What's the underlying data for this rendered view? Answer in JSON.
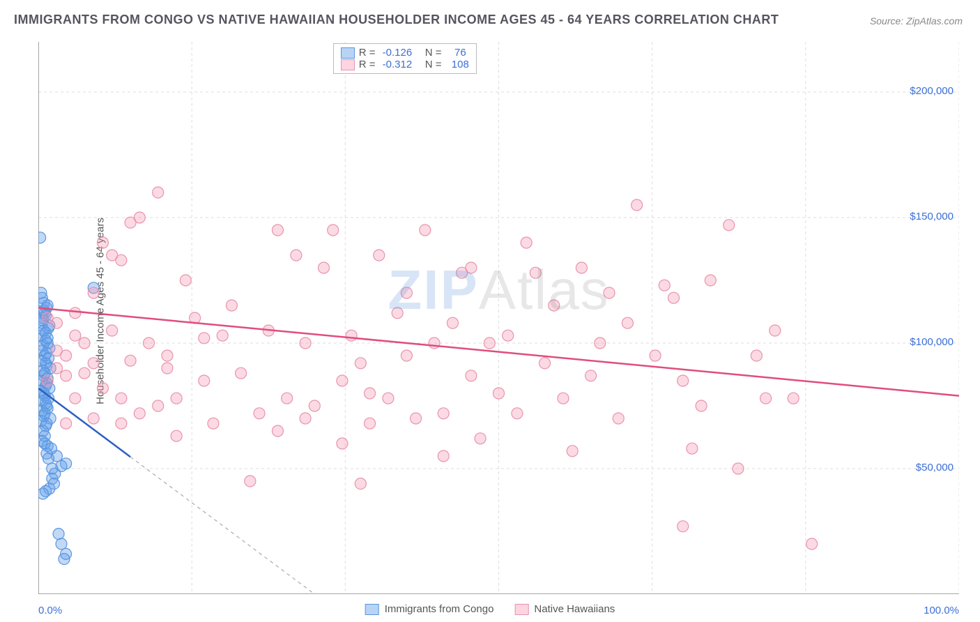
{
  "title": "IMMIGRANTS FROM CONGO VS NATIVE HAWAIIAN HOUSEHOLDER INCOME AGES 45 - 64 YEARS CORRELATION CHART",
  "source": "Source: ZipAtlas.com",
  "ylabel": "Householder Income Ages 45 - 64 years",
  "watermark_z": "ZIP",
  "watermark_rest": "Atlas",
  "chart": {
    "type": "scatter",
    "xlim": [
      0,
      100
    ],
    "ylim": [
      0,
      220000
    ],
    "background_color": "#ffffff",
    "grid_color": "#dddddd",
    "axis_color": "#888888",
    "ygrid_values": [
      50000,
      100000,
      150000,
      200000
    ],
    "xgrid_values": [
      0,
      16.67,
      33.33,
      50,
      66.67,
      83.33,
      100
    ],
    "ytick_labels": [
      "$50,000",
      "$100,000",
      "$150,000",
      "$200,000"
    ],
    "xtick_left": "0.0%",
    "xtick_right": "100.0%"
  },
  "series": [
    {
      "name": "Immigrants from Congo",
      "color_fill": "rgba(100,160,235,0.4)",
      "color_stroke": "#5a96df",
      "swatch_fill": "#b8d4f5",
      "swatch_stroke": "#5a96df",
      "trend_color": "#2d5fc4",
      "R": "-0.126",
      "N": "76",
      "trend": {
        "x1": 0,
        "y1": 82000,
        "x2": 30,
        "y2": 0,
        "solid_until_x": 10
      },
      "points": [
        [
          0.2,
          142000
        ],
        [
          0.3,
          120000
        ],
        [
          0.5,
          110000
        ],
        [
          0.4,
          108000
        ],
        [
          0.6,
          105000
        ],
        [
          0.3,
          103000
        ],
        [
          0.8,
          101000
        ],
        [
          0.5,
          99000
        ],
        [
          0.4,
          97000
        ],
        [
          0.7,
          95000
        ],
        [
          0.3,
          93000
        ],
        [
          0.9,
          91000
        ],
        [
          0.5,
          89000
        ],
        [
          0.6,
          87000
        ],
        [
          0.4,
          85000
        ],
        [
          0.8,
          83000
        ],
        [
          0.3,
          81000
        ],
        [
          0.7,
          79000
        ],
        [
          0.5,
          77000
        ],
        [
          0.9,
          75000
        ],
        [
          0.4,
          73000
        ],
        [
          0.6,
          71000
        ],
        [
          0.3,
          69000
        ],
        [
          0.8,
          67000
        ],
        [
          0.5,
          65000
        ],
        [
          0.7,
          63000
        ],
        [
          0.4,
          61000
        ],
        [
          1.0,
          59000
        ],
        [
          2.0,
          55000
        ],
        [
          3.0,
          52000
        ],
        [
          2.5,
          51000
        ],
        [
          1.5,
          50000
        ],
        [
          1.8,
          48000
        ],
        [
          1.2,
          42000
        ],
        [
          0.8,
          41000
        ],
        [
          0.5,
          40000
        ],
        [
          2.2,
          24000
        ],
        [
          2.5,
          20000
        ],
        [
          3.0,
          16000
        ],
        [
          2.8,
          14000
        ],
        [
          6.0,
          122000
        ],
        [
          1.0,
          100000
        ],
        [
          1.2,
          98000
        ],
        [
          0.9,
          96000
        ],
        [
          1.1,
          94000
        ],
        [
          0.8,
          92000
        ],
        [
          1.3,
          90000
        ],
        [
          0.7,
          88000
        ],
        [
          1.0,
          86000
        ],
        [
          0.9,
          84000
        ],
        [
          1.2,
          82000
        ],
        [
          0.6,
          80000
        ],
        [
          1.1,
          78000
        ],
        [
          0.8,
          76000
        ],
        [
          1.0,
          74000
        ],
        [
          0.7,
          72000
        ],
        [
          1.3,
          70000
        ],
        [
          0.9,
          68000
        ],
        [
          1.1,
          106000
        ],
        [
          0.8,
          104000
        ],
        [
          1.0,
          102000
        ],
        [
          0.6,
          116000
        ],
        [
          0.9,
          114000
        ],
        [
          0.7,
          112000
        ],
        [
          1.2,
          107000
        ],
        [
          0.5,
          109000
        ],
        [
          0.8,
          111000
        ],
        [
          0.6,
          113000
        ],
        [
          1.0,
          115000
        ],
        [
          0.4,
          118000
        ],
        [
          0.7,
          60000
        ],
        [
          1.4,
          58000
        ],
        [
          0.9,
          56000
        ],
        [
          1.1,
          54000
        ],
        [
          1.5,
          46000
        ],
        [
          1.7,
          44000
        ]
      ]
    },
    {
      "name": "Native Hawaiians",
      "color_fill": "rgba(245,150,175,0.35)",
      "color_stroke": "#e893ae",
      "swatch_fill": "#fcd5e0",
      "swatch_stroke": "#e893ae",
      "trend_color": "#e04d7e",
      "R": "-0.312",
      "N": "108",
      "trend": {
        "x1": 0,
        "y1": 114000,
        "x2": 100,
        "y2": 79000,
        "solid_until_x": 100
      },
      "points": [
        [
          1,
          110000
        ],
        [
          2,
          108000
        ],
        [
          3,
          95000
        ],
        [
          2,
          90000
        ],
        [
          4,
          112000
        ],
        [
          5,
          100000
        ],
        [
          3,
          87000
        ],
        [
          4,
          78000
        ],
        [
          6,
          92000
        ],
        [
          7,
          140000
        ],
        [
          8,
          135000
        ],
        [
          10,
          148000
        ],
        [
          11,
          150000
        ],
        [
          13,
          160000
        ],
        [
          14,
          95000
        ],
        [
          15,
          78000
        ],
        [
          9,
          133000
        ],
        [
          12,
          100000
        ],
        [
          16,
          125000
        ],
        [
          17,
          110000
        ],
        [
          18,
          102000
        ],
        [
          14,
          90000
        ],
        [
          20,
          103000
        ],
        [
          22,
          88000
        ],
        [
          23,
          45000
        ],
        [
          24,
          72000
        ],
        [
          25,
          105000
        ],
        [
          26,
          145000
        ],
        [
          27,
          78000
        ],
        [
          28,
          135000
        ],
        [
          29,
          100000
        ],
        [
          30,
          75000
        ],
        [
          31,
          130000
        ],
        [
          32,
          145000
        ],
        [
          33,
          85000
        ],
        [
          34,
          103000
        ],
        [
          35,
          92000
        ],
        [
          36,
          80000
        ],
        [
          37,
          135000
        ],
        [
          38,
          78000
        ],
        [
          39,
          112000
        ],
        [
          40,
          95000
        ],
        [
          42,
          145000
        ],
        [
          43,
          100000
        ],
        [
          44,
          72000
        ],
        [
          45,
          108000
        ],
        [
          46,
          128000
        ],
        [
          47,
          87000
        ],
        [
          48,
          62000
        ],
        [
          49,
          100000
        ],
        [
          50,
          80000
        ],
        [
          51,
          103000
        ],
        [
          52,
          72000
        ],
        [
          53,
          140000
        ],
        [
          54,
          128000
        ],
        [
          55,
          92000
        ],
        [
          56,
          115000
        ],
        [
          57,
          78000
        ],
        [
          58,
          57000
        ],
        [
          59,
          130000
        ],
        [
          60,
          87000
        ],
        [
          61,
          100000
        ],
        [
          62,
          120000
        ],
        [
          63,
          70000
        ],
        [
          64,
          108000
        ],
        [
          65,
          155000
        ],
        [
          67,
          95000
        ],
        [
          68,
          123000
        ],
        [
          69,
          118000
        ],
        [
          70,
          85000
        ],
        [
          71,
          58000
        ],
        [
          72,
          75000
        ],
        [
          73,
          125000
        ],
        [
          75,
          147000
        ],
        [
          76,
          50000
        ],
        [
          78,
          95000
        ],
        [
          79,
          78000
        ],
        [
          80,
          105000
        ],
        [
          82,
          78000
        ],
        [
          84,
          20000
        ],
        [
          70,
          27000
        ],
        [
          15,
          63000
        ],
        [
          8,
          105000
        ],
        [
          6,
          120000
        ],
        [
          5,
          88000
        ],
        [
          9,
          78000
        ],
        [
          11,
          72000
        ],
        [
          19,
          68000
        ],
        [
          21,
          115000
        ],
        [
          40,
          120000
        ],
        [
          44,
          55000
        ],
        [
          47,
          130000
        ],
        [
          26,
          65000
        ],
        [
          29,
          70000
        ],
        [
          18,
          85000
        ],
        [
          13,
          75000
        ],
        [
          10,
          93000
        ],
        [
          7,
          82000
        ],
        [
          4,
          103000
        ],
        [
          2,
          97000
        ],
        [
          1,
          85000
        ],
        [
          3,
          68000
        ],
        [
          6,
          70000
        ],
        [
          9,
          68000
        ],
        [
          36,
          68000
        ],
        [
          41,
          70000
        ],
        [
          35,
          44000
        ],
        [
          33,
          60000
        ]
      ]
    }
  ],
  "legend_bottom": [
    {
      "label": "Immigrants from Congo"
    },
    {
      "label": "Native Hawaiians"
    }
  ],
  "legend_top_labels": {
    "R": "R =",
    "N": "N ="
  },
  "stat_color": "#3b6fd8",
  "marker_radius": 8
}
